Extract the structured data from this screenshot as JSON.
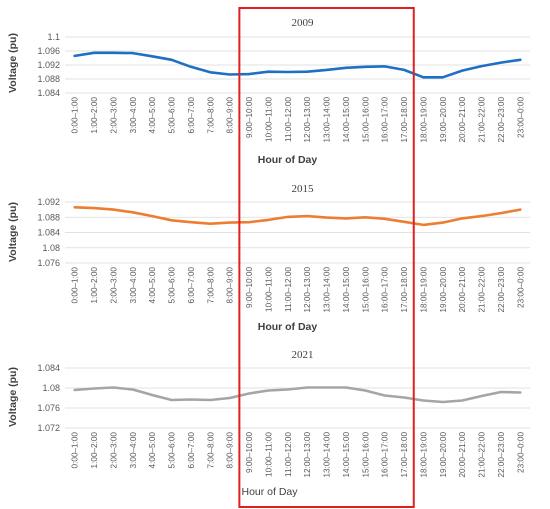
{
  "chart_data": [
    {
      "type": "line",
      "title": "2009",
      "xlabel": "Hour of Day",
      "ylabel": "Voltage (pu)",
      "ylim": [
        1.084,
        1.1
      ],
      "yticks": [
        "1.1",
        "1.096",
        "1.092",
        "1.088",
        "1.084"
      ],
      "categories": [
        "0:00–1:00",
        "1:00–2:00",
        "2:00–3:00",
        "3:00–4:00",
        "4:00–5:00",
        "5:00–6:00",
        "6:00–7:00",
        "7:00–8:00",
        "8:00–9:00",
        "9:00–10:00",
        "10:00–11:00",
        "11:00–12:00",
        "12:00–13:00",
        "13:00–14:00",
        "14:00–15:00",
        "15:00–16:00",
        "16:00–17:00",
        "17:00–18:00",
        "18:00–19:00",
        "19:00–20:00",
        "20:00–21:00",
        "21:00–22:00",
        "22:00–23:00",
        "23:00–0:00"
      ],
      "series": [
        {
          "color": "#1f6fc5",
          "values": [
            1.0946,
            1.0955,
            1.0955,
            1.0954,
            1.0945,
            1.0935,
            1.0915,
            1.0899,
            1.0893,
            1.0894,
            1.0901,
            1.09,
            1.0901,
            1.0906,
            1.0912,
            1.0915,
            1.0916,
            1.0906,
            1.0885,
            1.0885,
            1.0904,
            1.0917,
            1.0927,
            1.0935
          ]
        }
      ],
      "grid": true,
      "axis_title_bold": true
    },
    {
      "type": "line",
      "title": "2015",
      "xlabel": "Hour of Day",
      "ylabel": "Voltage (pu)",
      "ylim": [
        1.076,
        1.092
      ],
      "yticks": [
        "1.092",
        "1.088",
        "1.084",
        "1.08",
        "1.076"
      ],
      "categories": [
        "0:00–1:00",
        "1:00–2:00",
        "2:00–3:00",
        "3:00–4:00",
        "4:00–5:00",
        "5:00–6:00",
        "6:00–7:00",
        "7:00–8:00",
        "8:00–9:00",
        "9:00–10:00",
        "10:00–11:00",
        "11:00–12:00",
        "12:00–13:00",
        "13:00–14:00",
        "14:00–15:00",
        "15:00–16:00",
        "16:00–17:00",
        "17:00–18:00",
        "18:00–19:00",
        "19:00–20:00",
        "20:00–21:00",
        "21:00–22:00",
        "22:00–23:00",
        "23:00–0:00"
      ],
      "series": [
        {
          "color": "#ed7d31",
          "values": [
            1.0906,
            1.0904,
            1.09,
            1.0893,
            1.0883,
            1.0872,
            1.0867,
            1.0863,
            1.0866,
            1.0867,
            1.0873,
            1.0881,
            1.0883,
            1.0879,
            1.0877,
            1.088,
            1.0876,
            1.0868,
            1.086,
            1.0866,
            1.0877,
            1.0883,
            1.0891,
            1.09
          ]
        }
      ],
      "grid": true,
      "axis_title_bold": true
    },
    {
      "type": "line",
      "title": "2021",
      "xlabel": "Hour of Day",
      "ylabel": "Voltage (pu)",
      "ylim": [
        1.072,
        1.084
      ],
      "yticks": [
        "1.084",
        "1.08",
        "1.076",
        "1.072"
      ],
      "categories": [
        "0:00–1:00",
        "1:00–2:00",
        "2:00–3:00",
        "3:00–4:00",
        "4:00–5:00",
        "5:00–6:00",
        "6:00–7:00",
        "7:00–8:00",
        "8:00–9:00",
        "9:00–10:00",
        "10:00–11:00",
        "11:00–12:00",
        "12:00–13:00",
        "13:00–14:00",
        "14:00–15:00",
        "15:00–16:00",
        "16:00–17:00",
        "17:00–18:00",
        "18:00–19:00",
        "19:00–20:00",
        "20:00–21:00",
        "21:00–22:00",
        "22:00–23:00",
        "23:00–0:00"
      ],
      "series": [
        {
          "color": "#a5a5a5",
          "values": [
            1.0796,
            1.0799,
            1.0801,
            1.0797,
            1.0786,
            1.0776,
            1.0777,
            1.0776,
            1.078,
            1.0789,
            1.0795,
            1.0797,
            1.0801,
            1.0801,
            1.0801,
            1.0795,
            1.0785,
            1.0781,
            1.0775,
            1.0772,
            1.0775,
            1.0784,
            1.0792,
            1.0791
          ]
        }
      ],
      "grid": true,
      "axis_title_bold": false
    }
  ],
  "highlight": {
    "color": "#e02020",
    "from_category": "9:00–10:00",
    "to_category": "17:00–18:00"
  }
}
